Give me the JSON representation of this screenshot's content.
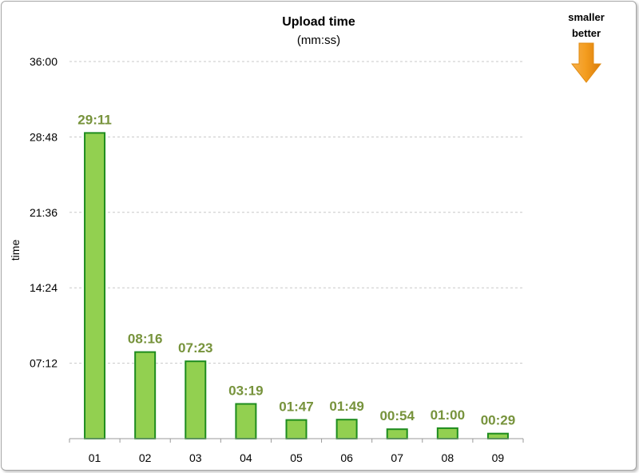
{
  "chart_data": {
    "type": "bar",
    "title": "Upload time",
    "subtitle": "(mm:ss)",
    "ylabel": "time",
    "xlabel": "",
    "categories": [
      "01",
      "02",
      "03",
      "04",
      "05",
      "06",
      "07",
      "08",
      "09"
    ],
    "values_seconds": [
      1751,
      496,
      443,
      199,
      107,
      109,
      54,
      60,
      29
    ],
    "data_labels": [
      "29:11",
      "08:16",
      "07:23",
      "03:19",
      "01:47",
      "01:49",
      "00:54",
      "01:00",
      "00:29"
    ],
    "ylim_seconds": [
      0,
      2160
    ],
    "yticks_seconds": [
      432,
      864,
      1296,
      1728,
      2160
    ],
    "ytick_labels": [
      "07:12",
      "14:24",
      "21:36",
      "28:48",
      "36:00"
    ],
    "grid": "horizontal-dashed",
    "legend": "none",
    "bar_fill": "#92d050",
    "bar_stroke": "#1e8c1e",
    "label_color": "#77933c"
  },
  "annotation": {
    "line1": "smaller",
    "line2": "better",
    "arrow_icon": "down-arrow-icon",
    "arrow_color": "#f39c1e"
  }
}
